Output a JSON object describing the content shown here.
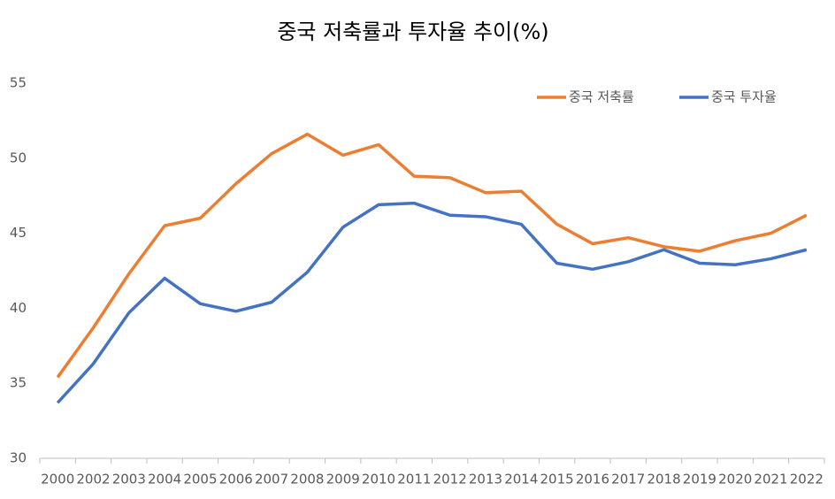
{
  "chart_data": {
    "type": "line",
    "title": "중국 저축률과 투자율 추이(%)",
    "categories": [
      "2000",
      "2002",
      "2003",
      "2004",
      "2005",
      "2006",
      "2007",
      "2008",
      "2009",
      "2010",
      "2011",
      "2012",
      "2013",
      "2014",
      "2015",
      "2016",
      "2017",
      "2018",
      "2019",
      "2020",
      "2021",
      "2022"
    ],
    "series": [
      {
        "name": "중국 저축률",
        "color": "#ed7d31",
        "values": [
          35.4,
          38.7,
          42.3,
          45.5,
          46.0,
          48.3,
          50.3,
          51.6,
          50.2,
          50.9,
          48.8,
          48.7,
          47.7,
          47.8,
          45.6,
          44.3,
          44.7,
          44.1,
          43.8,
          44.5,
          45.0,
          46.2
        ]
      },
      {
        "name": "중국 투자율",
        "color": "#4472c4",
        "values": [
          33.7,
          36.3,
          39.7,
          42.0,
          40.3,
          39.8,
          40.4,
          42.4,
          45.4,
          46.9,
          47.0,
          46.2,
          46.1,
          45.6,
          43.0,
          42.6,
          43.1,
          43.9,
          43.0,
          42.9,
          43.3,
          43.9
        ]
      }
    ],
    "ylim": [
      30,
      55
    ],
    "yticks": [
      30,
      35,
      40,
      45,
      50,
      55
    ],
    "grid": false,
    "legend": "top-right"
  }
}
